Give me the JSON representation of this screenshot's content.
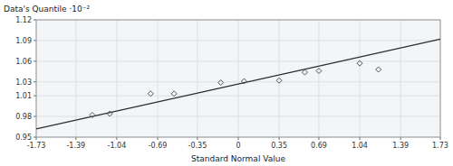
{
  "chart_data": {
    "type": "scatter",
    "ylabel": "Data's Quantile ·10⁻²",
    "xlabel": "Standard Normal Value",
    "xlim": [
      -1.73,
      1.73
    ],
    "ylim": [
      0.95,
      1.12
    ],
    "xticks": [
      -1.73,
      -1.39,
      -1.04,
      -0.69,
      -0.35,
      0,
      0.35,
      0.69,
      1.04,
      1.39,
      1.73
    ],
    "yticks": [
      0.95,
      0.98,
      1.01,
      1.03,
      1.06,
      1.09,
      1.12
    ],
    "grid": true,
    "series": [
      {
        "type": "line",
        "color": "#2a2a2a",
        "line_style": "solid",
        "x": [
          -1.73,
          1.73
        ],
        "values": [
          0.962,
          1.092
        ]
      },
      {
        "type": "scatter",
        "color": "#555555",
        "marker": "diamond",
        "x": [
          -1.25,
          -1.1,
          -0.75,
          -0.55,
          -0.15,
          0.05,
          0.35,
          0.57,
          0.69,
          1.04,
          1.2
        ],
        "values": [
          0.982,
          0.984,
          1.013,
          1.013,
          1.029,
          1.031,
          1.032,
          1.044,
          1.046,
          1.057,
          1.048
        ]
      }
    ]
  }
}
